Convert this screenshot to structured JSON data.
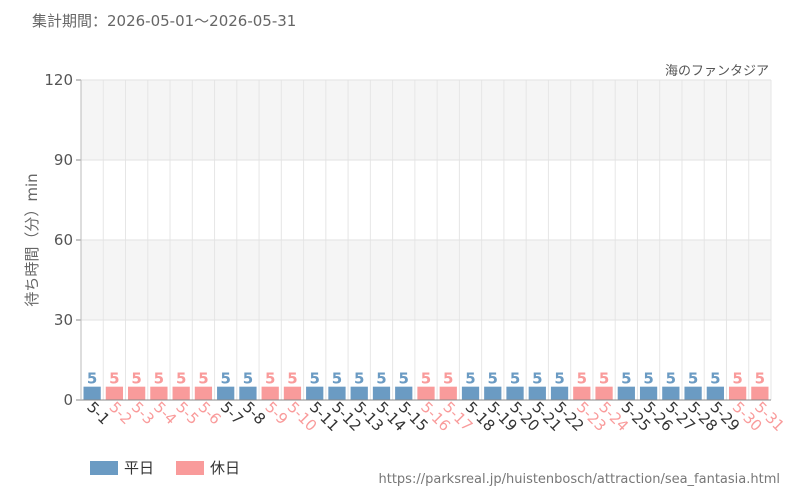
{
  "period_label": "集計期間：2026-05-01～2026-05-31",
  "source_url": "https://parksreal.jp/huistenbosch/attraction/sea_fantasia.html",
  "legend": [
    {
      "label": "平日",
      "color": "#6b9bc3"
    },
    {
      "label": "休日",
      "color": "#f99b9b"
    }
  ],
  "chart_data": {
    "type": "bar",
    "title": "海のファンタジア",
    "ylabel": "待ち時間（分）min",
    "ylim": [
      0,
      120
    ],
    "yticks": [
      0,
      30,
      60,
      90,
      120
    ],
    "categories": [
      "5-1",
      "5-2",
      "5-3",
      "5-4",
      "5-5",
      "5-6",
      "5-7",
      "5-8",
      "5-9",
      "5-10",
      "5-11",
      "5-12",
      "5-13",
      "5-14",
      "5-15",
      "5-16",
      "5-17",
      "5-18",
      "5-19",
      "5-20",
      "5-21",
      "5-22",
      "5-23",
      "5-24",
      "5-25",
      "5-26",
      "5-27",
      "5-28",
      "5-29",
      "5-30",
      "5-31"
    ],
    "values": [
      5,
      5,
      5,
      5,
      5,
      5,
      5,
      5,
      5,
      5,
      5,
      5,
      5,
      5,
      5,
      5,
      5,
      5,
      5,
      5,
      5,
      5,
      5,
      5,
      5,
      5,
      5,
      5,
      5,
      5,
      5
    ],
    "day_type": [
      "平日",
      "休日",
      "休日",
      "休日",
      "休日",
      "休日",
      "平日",
      "平日",
      "休日",
      "休日",
      "平日",
      "平日",
      "平日",
      "平日",
      "平日",
      "休日",
      "休日",
      "平日",
      "平日",
      "平日",
      "平日",
      "平日",
      "休日",
      "休日",
      "平日",
      "平日",
      "平日",
      "平日",
      "平日",
      "休日",
      "休日"
    ],
    "colors": {
      "平日": "#6b9bc3",
      "休日": "#f99b9b"
    }
  }
}
